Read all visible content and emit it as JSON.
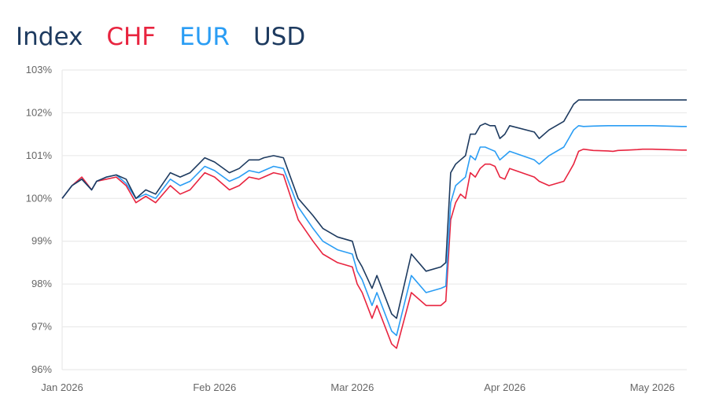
{
  "legend": {
    "title": "Index",
    "items": [
      {
        "label": "CHF",
        "color": "#e8243f"
      },
      {
        "label": "EUR",
        "color": "#2a9df4"
      },
      {
        "label": "USD",
        "color": "#1d3a5f"
      }
    ]
  },
  "chart_data": {
    "type": "line",
    "title": "",
    "xlabel": "",
    "ylabel": "",
    "x_tick_labels": [
      {
        "label": "Jan 2026",
        "date": "2026-01-01"
      },
      {
        "label": "Feb 2026",
        "date": "2026-02-01"
      },
      {
        "label": "Mar 2026",
        "date": "2026-03-01"
      },
      {
        "label": "Apr 2026",
        "date": "2026-04-01"
      },
      {
        "label": "May 2026",
        "date": "2026-05-01"
      }
    ],
    "y_tick_labels": [
      "96%",
      "97%",
      "98%",
      "99%",
      "100%",
      "101%",
      "102%",
      "103%"
    ],
    "ylim": [
      96,
      103
    ],
    "xlim": [
      "2026-01-01",
      "2026-05-08"
    ],
    "grid": "horizontal",
    "x": [
      "2026-01-01",
      "2026-01-03",
      "2026-01-05",
      "2026-01-07",
      "2026-01-08",
      "2026-01-10",
      "2026-01-12",
      "2026-01-14",
      "2026-01-16",
      "2026-01-18",
      "2026-01-20",
      "2026-01-23",
      "2026-01-25",
      "2026-01-27",
      "2026-01-30",
      "2026-02-01",
      "2026-02-04",
      "2026-02-06",
      "2026-02-08",
      "2026-02-10",
      "2026-02-11",
      "2026-02-13",
      "2026-02-15",
      "2026-02-18",
      "2026-02-21",
      "2026-02-23",
      "2026-02-26",
      "2026-03-01",
      "2026-03-02",
      "2026-03-03",
      "2026-03-05",
      "2026-03-06",
      "2026-03-09",
      "2026-03-10",
      "2026-03-13",
      "2026-03-16",
      "2026-03-19",
      "2026-03-20",
      "2026-03-21",
      "2026-03-22",
      "2026-03-23",
      "2026-03-24",
      "2026-03-25",
      "2026-03-26",
      "2026-03-27",
      "2026-03-28",
      "2026-03-29",
      "2026-03-30",
      "2026-03-31",
      "2026-04-01",
      "2026-04-02",
      "2026-04-07",
      "2026-04-08",
      "2026-04-10",
      "2026-04-13",
      "2026-04-14",
      "2026-04-15",
      "2026-04-16",
      "2026-04-17",
      "2026-04-19",
      "2026-04-22",
      "2026-04-23",
      "2026-04-24",
      "2026-04-26",
      "2026-04-28",
      "2026-04-29",
      "2026-05-01",
      "2026-05-07",
      "2026-05-08"
    ],
    "series": [
      {
        "name": "CHF",
        "color": "#e8243f",
        "values": [
          100.0,
          100.3,
          100.5,
          100.2,
          100.4,
          100.45,
          100.5,
          100.3,
          99.9,
          100.05,
          99.9,
          100.3,
          100.1,
          100.2,
          100.6,
          100.5,
          100.2,
          100.3,
          100.5,
          100.45,
          100.5,
          100.6,
          100.55,
          99.5,
          99.0,
          98.7,
          98.5,
          98.4,
          98.0,
          97.8,
          97.2,
          97.5,
          96.6,
          96.5,
          97.8,
          97.5,
          97.5,
          97.6,
          99.5,
          99.9,
          100.1,
          100.0,
          100.6,
          100.5,
          100.7,
          100.8,
          100.8,
          100.75,
          100.5,
          100.45,
          100.7,
          100.5,
          100.4,
          100.3,
          100.4,
          100.6,
          100.8,
          101.1,
          101.15,
          101.12,
          101.11,
          101.1,
          101.12,
          101.13,
          101.14,
          101.15,
          101.15,
          101.13,
          101.13
        ]
      },
      {
        "name": "EUR",
        "color": "#2a9df4",
        "values": [
          100.0,
          100.3,
          100.45,
          100.2,
          100.4,
          100.5,
          100.55,
          100.35,
          100.0,
          100.1,
          100.0,
          100.45,
          100.3,
          100.4,
          100.75,
          100.65,
          100.4,
          100.5,
          100.65,
          100.6,
          100.65,
          100.75,
          100.7,
          99.8,
          99.3,
          99.0,
          98.8,
          98.7,
          98.3,
          98.1,
          97.5,
          97.8,
          96.9,
          96.8,
          98.2,
          97.8,
          97.9,
          97.95,
          99.9,
          100.3,
          100.4,
          100.5,
          101.0,
          100.9,
          101.2,
          101.2,
          101.15,
          101.1,
          100.9,
          101.0,
          101.1,
          100.9,
          100.8,
          101.0,
          101.2,
          101.4,
          101.6,
          101.7,
          101.68,
          101.69,
          101.7,
          101.7,
          101.7,
          101.7,
          101.7,
          101.7,
          101.7,
          101.68,
          101.68
        ]
      },
      {
        "name": "USD",
        "color": "#1d3a5f",
        "values": [
          100.0,
          100.3,
          100.45,
          100.2,
          100.4,
          100.5,
          100.55,
          100.45,
          100.0,
          100.2,
          100.1,
          100.6,
          100.5,
          100.6,
          100.95,
          100.85,
          100.6,
          100.7,
          100.9,
          100.9,
          100.95,
          101.0,
          100.95,
          100.0,
          99.6,
          99.3,
          99.1,
          99.0,
          98.6,
          98.4,
          97.9,
          98.2,
          97.3,
          97.2,
          98.7,
          98.3,
          98.4,
          98.5,
          100.6,
          100.8,
          100.9,
          101.0,
          101.5,
          101.5,
          101.7,
          101.75,
          101.7,
          101.7,
          101.4,
          101.5,
          101.7,
          101.55,
          101.4,
          101.6,
          101.8,
          102.0,
          102.2,
          102.3,
          102.3,
          102.3,
          102.3,
          102.3,
          102.3,
          102.3,
          102.3,
          102.3,
          102.3,
          102.3,
          102.3
        ]
      }
    ]
  }
}
